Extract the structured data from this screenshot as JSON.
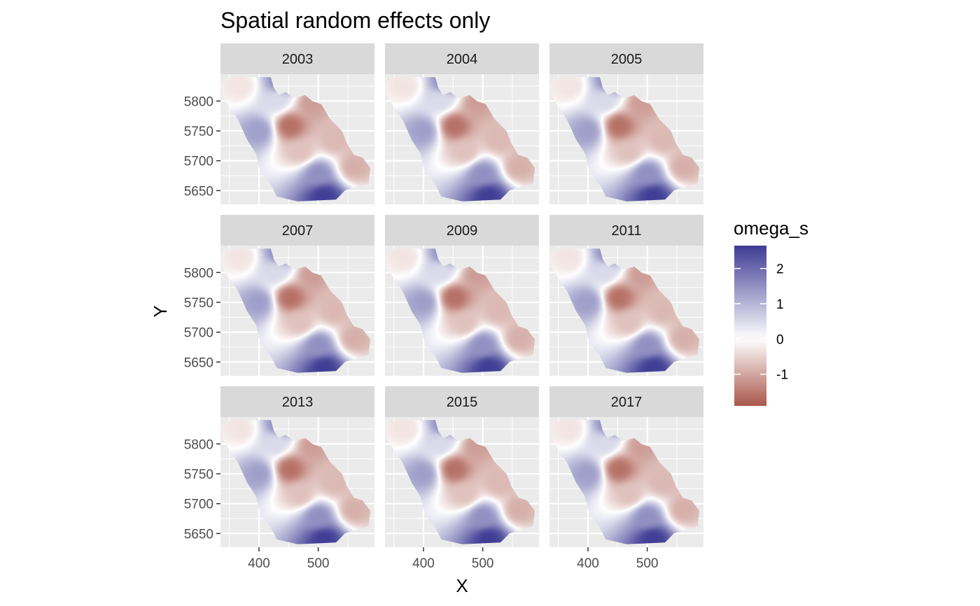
{
  "chart_data": {
    "type": "heatmap",
    "title": "Spatial random effects only",
    "xlabel": "X",
    "ylabel": "Y",
    "facets": [
      "2003",
      "2004",
      "2005",
      "2007",
      "2009",
      "2011",
      "2013",
      "2015",
      "2017"
    ],
    "facet_rows": 3,
    "facet_cols": 3,
    "xlim": [
      335,
      595
    ],
    "ylim": [
      5627,
      5845
    ],
    "x_ticks": [
      400,
      500
    ],
    "y_ticks": [
      5650,
      5700,
      5750,
      5800
    ],
    "grid": true,
    "legend": {
      "title": "omega_s",
      "position": "right",
      "range": [
        -1.9,
        2.65
      ],
      "ticks": [
        2,
        1,
        0,
        -1
      ],
      "colors": {
        "high": "#3d3b93",
        "mid": "#ffffff",
        "low": "#a9574b"
      }
    },
    "region_outline": [
      [
        352,
        5840
      ],
      [
        420,
        5840
      ],
      [
        425,
        5822
      ],
      [
        433,
        5810
      ],
      [
        445,
        5815
      ],
      [
        460,
        5805
      ],
      [
        478,
        5810
      ],
      [
        490,
        5800
      ],
      [
        505,
        5795
      ],
      [
        520,
        5770
      ],
      [
        540,
        5750
      ],
      [
        548,
        5730
      ],
      [
        560,
        5710
      ],
      [
        575,
        5705
      ],
      [
        588,
        5688
      ],
      [
        585,
        5662
      ],
      [
        560,
        5655
      ],
      [
        545,
        5650
      ],
      [
        530,
        5635
      ],
      [
        465,
        5632
      ],
      [
        430,
        5640
      ],
      [
        420,
        5660
      ],
      [
        410,
        5672
      ],
      [
        400,
        5690
      ],
      [
        395,
        5712
      ],
      [
        380,
        5735
      ],
      [
        365,
        5768
      ],
      [
        350,
        5790
      ],
      [
        338,
        5810
      ],
      [
        335,
        5830
      ]
    ],
    "field_centers": [
      {
        "x": 400,
        "y": 5750,
        "value": 1.3
      },
      {
        "x": 452,
        "y": 5758,
        "value": -1.6
      },
      {
        "x": 490,
        "y": 5797,
        "value": -1.1
      },
      {
        "x": 500,
        "y": 5678,
        "value": 1.5
      },
      {
        "x": 510,
        "y": 5640,
        "value": 2.6
      },
      {
        "x": 428,
        "y": 5800,
        "value": 0.5
      },
      {
        "x": 370,
        "y": 5825,
        "value": -0.3
      },
      {
        "x": 470,
        "y": 5715,
        "value": -0.7
      },
      {
        "x": 560,
        "y": 5690,
        "value": -0.9
      },
      {
        "x": 527,
        "y": 5735,
        "value": -0.8
      },
      {
        "x": 438,
        "y": 5832,
        "value": 1.6
      }
    ]
  }
}
